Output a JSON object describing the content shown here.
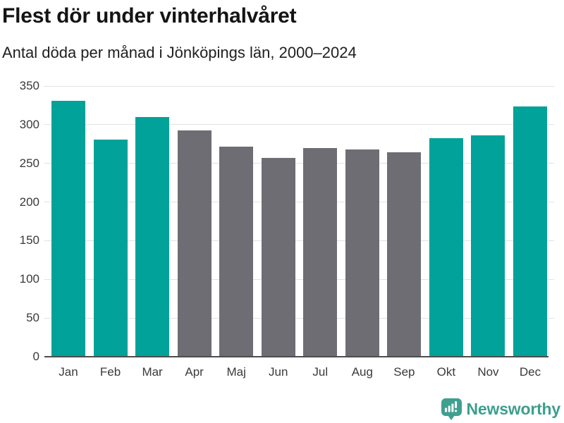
{
  "header": {
    "title": "Flest dör under vinterhalvåret",
    "subtitle": "Antal döda per månad i Jönköpings län, 2000–2024"
  },
  "chart_data": {
    "type": "bar",
    "categories": [
      "Jan",
      "Feb",
      "Mar",
      "Apr",
      "Maj",
      "Jun",
      "Jul",
      "Aug",
      "Sep",
      "Okt",
      "Nov",
      "Dec"
    ],
    "values": [
      331,
      281,
      310,
      293,
      272,
      257,
      270,
      268,
      264,
      283,
      286,
      324
    ],
    "title": "Flest dör under vinterhalvåret",
    "subtitle": "Antal döda per månad i Jönköpings län, 2000–2024",
    "xlabel": "",
    "ylabel": "",
    "ylim": [
      0,
      350
    ],
    "yticks": [
      0,
      50,
      100,
      150,
      200,
      250,
      300,
      350
    ],
    "grid": true,
    "legend": "none",
    "winter_months": [
      "Jan",
      "Feb",
      "Mar",
      "Okt",
      "Nov",
      "Dec"
    ],
    "colors": {
      "winter_bar": "#00A299",
      "summer_bar": "#6F6D74",
      "gridline": "#e2e2e2",
      "axis_line": "#4d4d4d",
      "tick_label": "#3a3a3a"
    }
  },
  "footer": {
    "brand": "Newsworthy",
    "brand_color": "#3D9E8E",
    "logo_color": "#3FA08F",
    "logo_icon": "bar-chart-speech-bubble-icon"
  }
}
